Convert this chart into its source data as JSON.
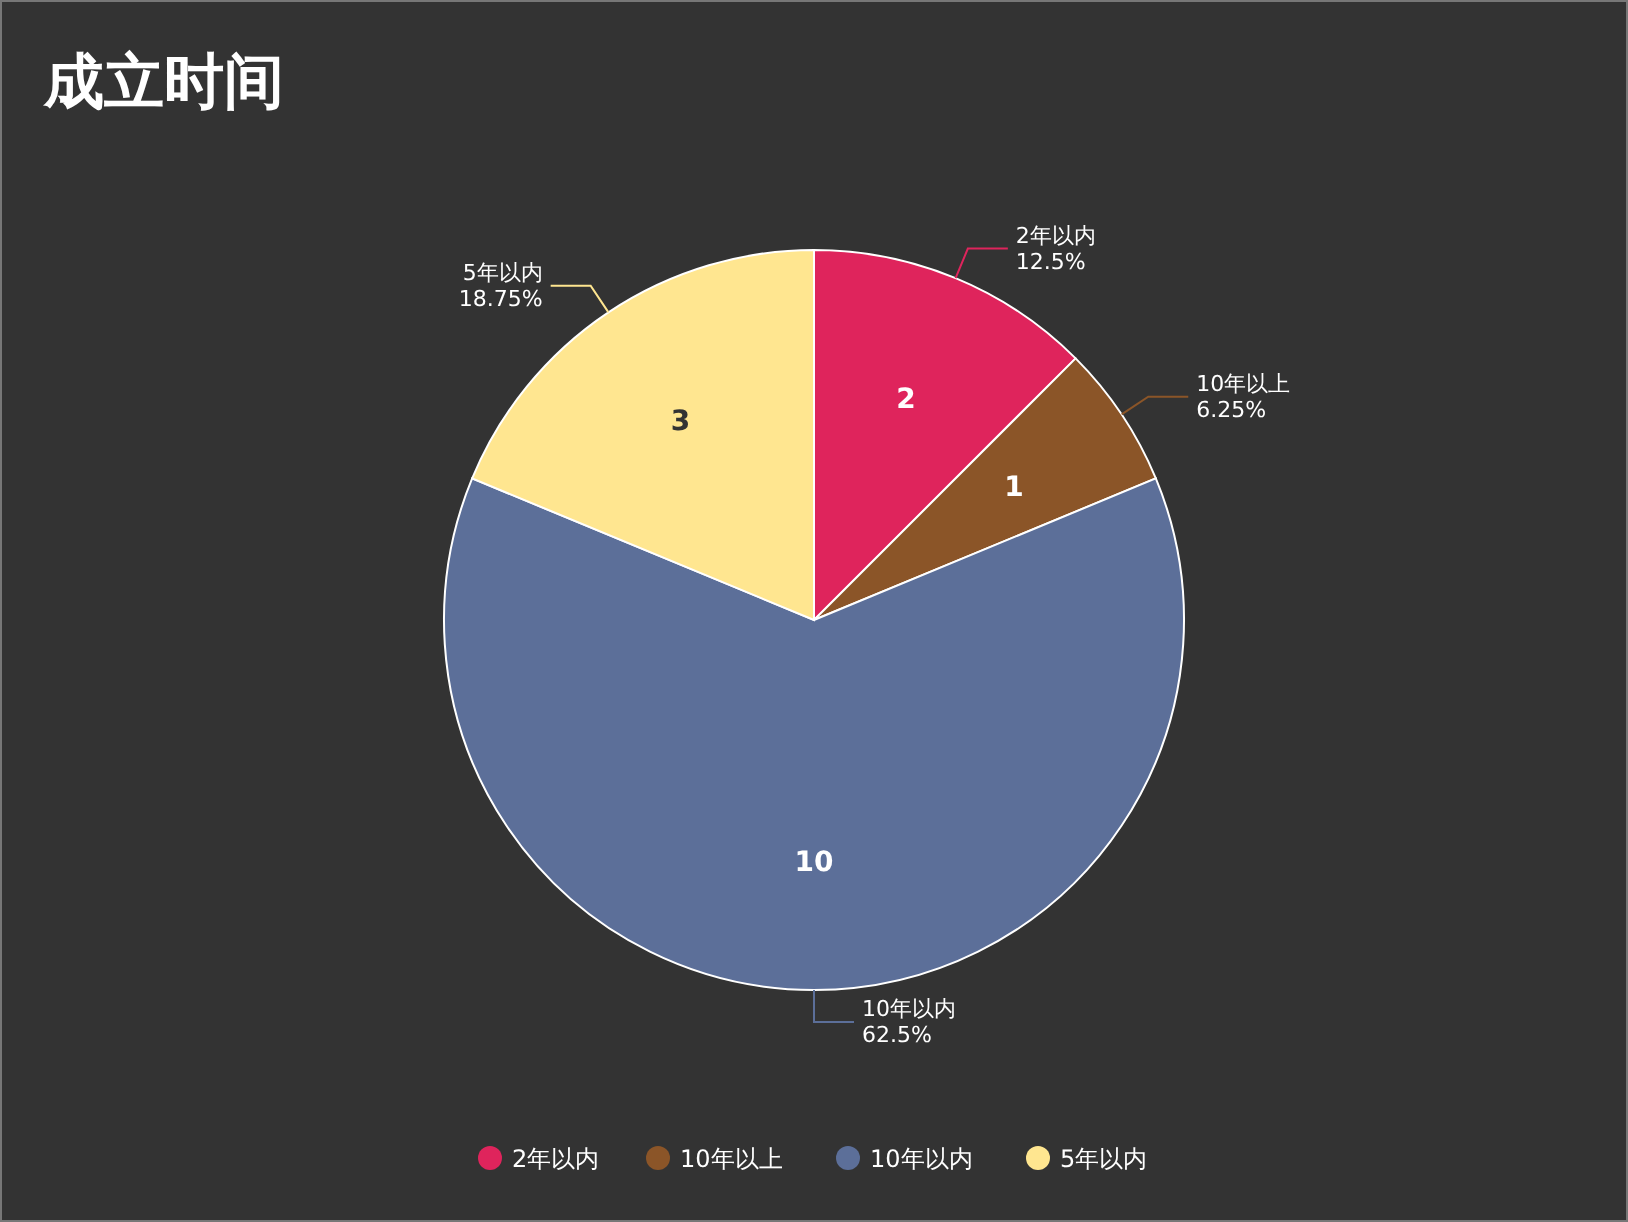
{
  "chart_data": {
    "type": "pie",
    "title": "成立时间",
    "categories": [
      "2年以内",
      "10年以上",
      "10年以内",
      "5年以内"
    ],
    "values": [
      12.5,
      6.25,
      62.5,
      18.75
    ],
    "colors": [
      "#df245c",
      "#8b5528",
      "#5c6f99",
      "#ffe690"
    ],
    "value_labels": [
      "12.5%",
      "6.25%",
      "62.5%",
      "18.75%"
    ],
    "annotations": [
      "2",
      "1",
      "10",
      "3"
    ],
    "legend": "bottom"
  }
}
